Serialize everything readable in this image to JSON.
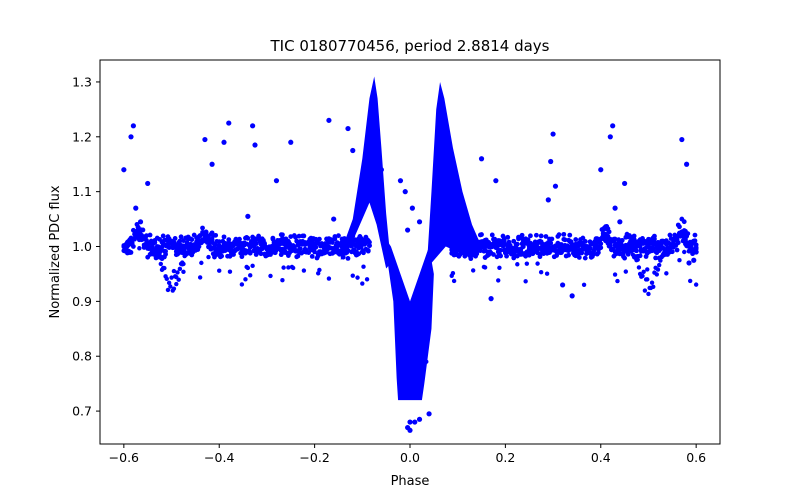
{
  "chart_data": {
    "type": "scatter",
    "title": "TIC 0180770456, period 2.8814 days",
    "xlabel": "Phase",
    "ylabel": "Normalized PDC flux",
    "xlim": [
      -0.65,
      0.65
    ],
    "ylim": [
      0.64,
      1.34
    ],
    "x_ticks": [
      -0.6,
      -0.4,
      -0.2,
      0.0,
      0.2,
      0.4,
      0.6
    ],
    "x_tick_labels": [
      "−0.6",
      "−0.4",
      "−0.2",
      "0.0",
      "0.2",
      "0.4",
      "0.6"
    ],
    "y_ticks": [
      0.7,
      0.8,
      0.9,
      1.0,
      1.1,
      1.2,
      1.3
    ],
    "y_tick_labels": [
      "0.7",
      "0.8",
      "0.9",
      "1.0",
      "1.1",
      "1.2",
      "1.3"
    ],
    "grid": false,
    "marker_color": "#0000ff",
    "series": [
      {
        "name": "",
        "points": [
          [
            -0.6,
            1.14
          ],
          [
            -0.585,
            1.2
          ],
          [
            -0.58,
            1.22
          ],
          [
            -0.575,
            1.07
          ],
          [
            -0.565,
            1.045
          ],
          [
            -0.55,
            1.115
          ],
          [
            -0.38,
            1.225
          ],
          [
            -0.43,
            1.195
          ],
          [
            -0.415,
            1.15
          ],
          [
            -0.39,
            1.19
          ],
          [
            -0.33,
            1.22
          ],
          [
            -0.325,
            1.185
          ],
          [
            -0.28,
            1.12
          ],
          [
            -0.34,
            1.055
          ],
          [
            -0.25,
            1.19
          ],
          [
            -0.17,
            1.23
          ],
          [
            -0.13,
            1.215
          ],
          [
            -0.16,
            1.05
          ],
          [
            -0.12,
            1.175
          ],
          [
            0.3,
            1.205
          ],
          [
            0.295,
            1.155
          ],
          [
            0.29,
            1.085
          ],
          [
            0.305,
            1.11
          ],
          [
            0.15,
            1.16
          ],
          [
            0.18,
            1.12
          ],
          [
            0.42,
            1.2
          ],
          [
            0.425,
            1.22
          ],
          [
            0.4,
            1.14
          ],
          [
            0.45,
            1.115
          ],
          [
            0.43,
            1.07
          ],
          [
            0.57,
            1.195
          ],
          [
            0.58,
            1.15
          ],
          [
            0.44,
            1.045
          ],
          [
            0.32,
            0.93
          ],
          [
            0.34,
            0.91
          ],
          [
            0.17,
            0.905
          ],
          [
            0.595,
            0.975
          ],
          [
            0.6,
            0.99
          ],
          [
            0.585,
            0.97
          ],
          [
            -0.01,
            1.1
          ],
          [
            -0.02,
            1.12
          ],
          [
            0.005,
            1.07
          ],
          [
            0.02,
            1.045
          ],
          [
            -0.005,
            1.03
          ],
          [
            -0.06,
            1.14
          ],
          [
            -0.07,
            1.165
          ],
          [
            0.09,
            1.12
          ],
          [
            0.1,
            1.09
          ],
          [
            0.0,
            0.68
          ],
          [
            0.01,
            0.68
          ],
          [
            0.02,
            0.685
          ],
          [
            0.04,
            0.695
          ],
          [
            -0.005,
            0.67
          ],
          [
            0.0,
            0.665
          ]
        ]
      }
    ]
  }
}
